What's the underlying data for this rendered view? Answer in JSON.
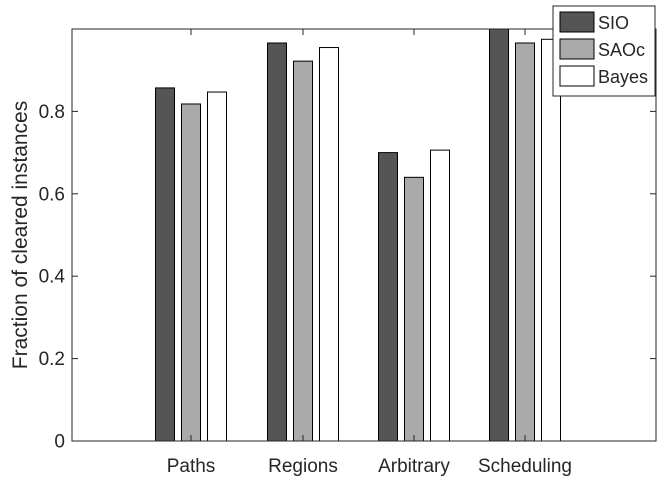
{
  "chart_data": {
    "type": "bar",
    "title": "",
    "xlabel": "",
    "ylabel": "Fraction of cleared instances",
    "categories": [
      "Paths",
      "Regions",
      "Arbitrary",
      "Scheduling"
    ],
    "series": [
      {
        "name": "SIO",
        "color": "#555555",
        "values": [
          0.857,
          0.966,
          0.7,
          1.0
        ]
      },
      {
        "name": "SAOc",
        "color": "#aaaaaa",
        "values": [
          0.818,
          0.922,
          0.64,
          0.966
        ]
      },
      {
        "name": "Bayes",
        "color": "#ffffff",
        "values": [
          0.847,
          0.955,
          0.706,
          0.975
        ]
      }
    ],
    "ylim": [
      0,
      1
    ],
    "yticks": [
      0,
      0.2,
      0.4,
      0.6,
      0.8
    ],
    "ytick_labels": [
      "0",
      "0.2",
      "0.4",
      "0.6",
      "0.8"
    ],
    "grid": false,
    "legend": "top-right"
  }
}
